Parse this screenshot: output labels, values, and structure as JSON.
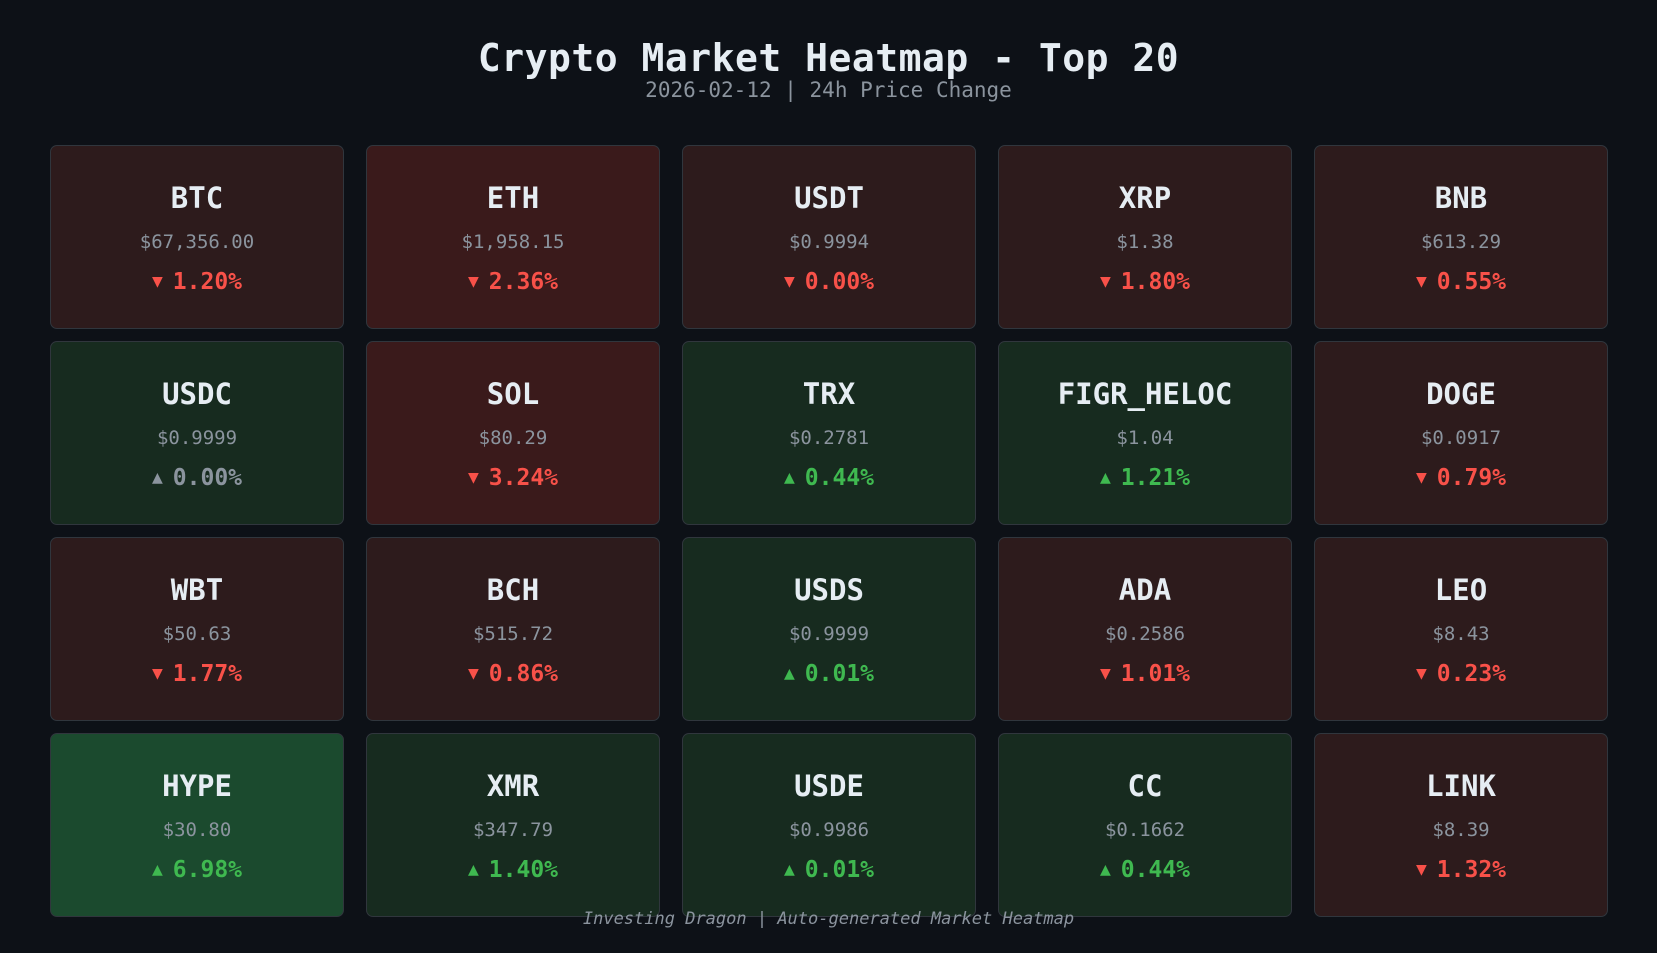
{
  "header": {
    "title": "Crypto Market Heatmap - Top 20",
    "subtitle": "2026-02-12 | 24h Price Change"
  },
  "footer": {
    "text": "Investing Dragon | Auto-generated Market Heatmap"
  },
  "colors": {
    "background": "#0d1117",
    "negative_text": "#f85149",
    "positive_text": "#3fb950",
    "neutral_text": "#8b949e",
    "tile_neg_light": "#2d1b1c",
    "tile_neg_mid": "#3a1a1b",
    "tile_pos_light": "#172b1f",
    "tile_pos_strong": "#1b4a2e"
  },
  "tiles": [
    {
      "symbol": "BTC",
      "price": "$67,356.00",
      "arrow": "▼",
      "change": "1.20%",
      "direction": "down",
      "shade": "neg-light"
    },
    {
      "symbol": "ETH",
      "price": "$1,958.15",
      "arrow": "▼",
      "change": "2.36%",
      "direction": "down",
      "shade": "neg-mid"
    },
    {
      "symbol": "USDT",
      "price": "$0.9994",
      "arrow": "▼",
      "change": "0.00%",
      "direction": "down",
      "shade": "neg-light"
    },
    {
      "symbol": "XRP",
      "price": "$1.38",
      "arrow": "▼",
      "change": "1.80%",
      "direction": "down",
      "shade": "neg-light"
    },
    {
      "symbol": "BNB",
      "price": "$613.29",
      "arrow": "▼",
      "change": "0.55%",
      "direction": "down",
      "shade": "neg-light"
    },
    {
      "symbol": "USDC",
      "price": "$0.9999",
      "arrow": "▲",
      "change": "0.00%",
      "direction": "flat",
      "shade": "pos-light"
    },
    {
      "symbol": "SOL",
      "price": "$80.29",
      "arrow": "▼",
      "change": "3.24%",
      "direction": "down",
      "shade": "neg-mid"
    },
    {
      "symbol": "TRX",
      "price": "$0.2781",
      "arrow": "▲",
      "change": "0.44%",
      "direction": "up",
      "shade": "pos-light"
    },
    {
      "symbol": "FIGR_HELOC",
      "price": "$1.04",
      "arrow": "▲",
      "change": "1.21%",
      "direction": "up",
      "shade": "pos-light"
    },
    {
      "symbol": "DOGE",
      "price": "$0.0917",
      "arrow": "▼",
      "change": "0.79%",
      "direction": "down",
      "shade": "neg-light"
    },
    {
      "symbol": "WBT",
      "price": "$50.63",
      "arrow": "▼",
      "change": "1.77%",
      "direction": "down",
      "shade": "neg-light"
    },
    {
      "symbol": "BCH",
      "price": "$515.72",
      "arrow": "▼",
      "change": "0.86%",
      "direction": "down",
      "shade": "neg-light"
    },
    {
      "symbol": "USDS",
      "price": "$0.9999",
      "arrow": "▲",
      "change": "0.01%",
      "direction": "up",
      "shade": "pos-light"
    },
    {
      "symbol": "ADA",
      "price": "$0.2586",
      "arrow": "▼",
      "change": "1.01%",
      "direction": "down",
      "shade": "neg-light"
    },
    {
      "symbol": "LEO",
      "price": "$8.43",
      "arrow": "▼",
      "change": "0.23%",
      "direction": "down",
      "shade": "neg-light"
    },
    {
      "symbol": "HYPE",
      "price": "$30.80",
      "arrow": "▲",
      "change": "6.98%",
      "direction": "up",
      "shade": "pos-strong"
    },
    {
      "symbol": "XMR",
      "price": "$347.79",
      "arrow": "▲",
      "change": "1.40%",
      "direction": "up",
      "shade": "pos-light"
    },
    {
      "symbol": "USDE",
      "price": "$0.9986",
      "arrow": "▲",
      "change": "0.01%",
      "direction": "up",
      "shade": "pos-light"
    },
    {
      "symbol": "CC",
      "price": "$0.1662",
      "arrow": "▲",
      "change": "0.44%",
      "direction": "up",
      "shade": "pos-light"
    },
    {
      "symbol": "LINK",
      "price": "$8.39",
      "arrow": "▼",
      "change": "1.32%",
      "direction": "down",
      "shade": "neg-light"
    }
  ],
  "chart_data": {
    "type": "heatmap",
    "title": "Crypto Market Heatmap - Top 20",
    "subtitle": "2026-02-12 | 24h Price Change",
    "layout": {
      "rows": 4,
      "columns": 5,
      "grid": false,
      "legend": "none"
    },
    "categories": [
      "BTC",
      "ETH",
      "USDT",
      "XRP",
      "BNB",
      "USDC",
      "SOL",
      "TRX",
      "FIGR_HELOC",
      "DOGE",
      "WBT",
      "BCH",
      "USDS",
      "ADA",
      "LEO",
      "HYPE",
      "XMR",
      "USDE",
      "CC",
      "LINK"
    ],
    "prices": [
      67356.0,
      1958.15,
      0.9994,
      1.38,
      613.29,
      0.9999,
      80.29,
      0.2781,
      1.04,
      0.0917,
      50.63,
      515.72,
      0.9999,
      0.2586,
      8.43,
      30.8,
      347.79,
      0.9986,
      0.1662,
      8.39
    ],
    "values": [
      -1.2,
      -2.36,
      -0.0,
      -1.8,
      -0.55,
      0.0,
      -3.24,
      0.44,
      1.21,
      -0.79,
      -1.77,
      -0.86,
      0.01,
      -1.01,
      -0.23,
      6.98,
      1.4,
      0.01,
      0.44,
      -1.32
    ],
    "value_label": "24h Price Change (%)",
    "footer": "Investing Dragon | Auto-generated Market Heatmap"
  }
}
